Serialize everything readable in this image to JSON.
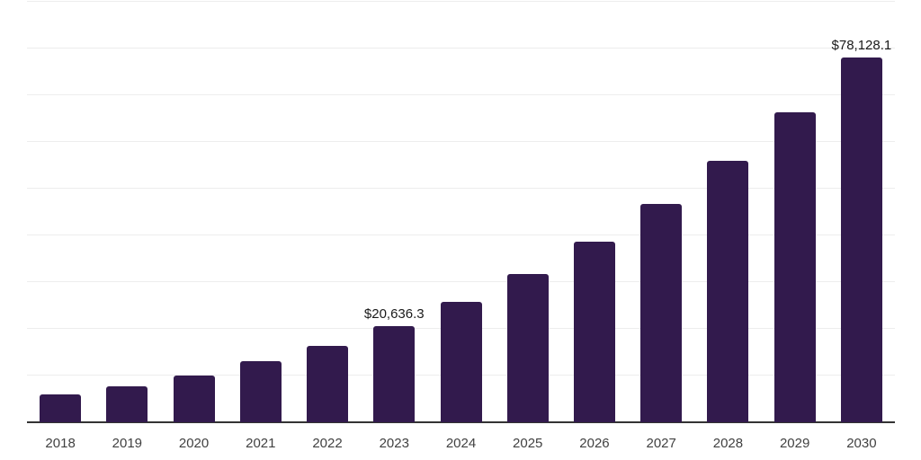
{
  "chart_data": {
    "type": "bar",
    "title": "",
    "xlabel": "",
    "ylabel": "",
    "categories": [
      "2018",
      "2019",
      "2020",
      "2021",
      "2022",
      "2023",
      "2024",
      "2025",
      "2026",
      "2027",
      "2028",
      "2029",
      "2030"
    ],
    "values": [
      5940,
      7670,
      10030,
      13090,
      16430,
      20636.3,
      25780,
      31690,
      38670,
      46640,
      55920,
      66330,
      78128.1
    ],
    "labeled_points": [
      {
        "category": "2023",
        "label": "$20,636.3"
      },
      {
        "category": "2030",
        "label": "$78,128.1"
      }
    ],
    "ylim": [
      0,
      90000
    ],
    "gridline_step": 10000,
    "grid": "horizontal-only",
    "legend": "none",
    "y_axis_tick_labels": "none",
    "colors": {
      "bar": "#321a4d",
      "gridline": "#ededed",
      "axis_line": "#333333",
      "tick_label": "#414141",
      "value_label": "#1a1a1a",
      "background": "#ffffff"
    }
  }
}
